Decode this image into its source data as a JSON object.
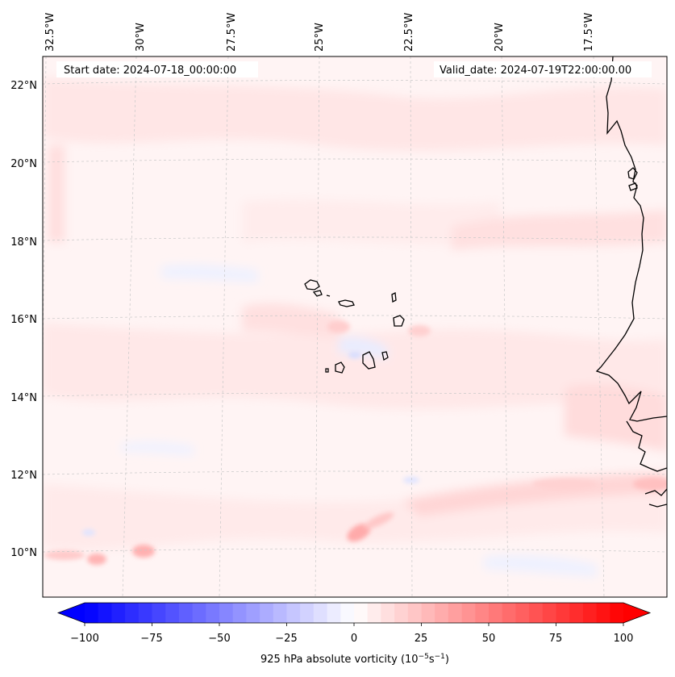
{
  "map": {
    "start_date": "Start date: 2024-07-18_00:00:00",
    "valid_date": "Valid_date: 2024-07-19T22:00:00.00",
    "lon_labels": [
      "32.5°W",
      "30°W",
      "27.5°W",
      "25°W",
      "22.5°W",
      "20°W",
      "17.5°W"
    ],
    "lat_labels": [
      "22°N",
      "20°N",
      "18°N",
      "16°N",
      "14°N",
      "12°N",
      "10°N"
    ]
  },
  "colorbar": {
    "ticks": [
      "−100",
      "−75",
      "−50",
      "−25",
      "0",
      "25",
      "50",
      "75",
      "100"
    ],
    "label_main": "925 hPa absolute vorticity (10",
    "label_exp1": "−5",
    "label_mid": "s",
    "label_exp2": "−1",
    "label_end": ")",
    "min": -100,
    "max": 100,
    "min_color": "#0000ff",
    "mid_color": "#ffffff",
    "max_color": "#ff0000"
  }
}
